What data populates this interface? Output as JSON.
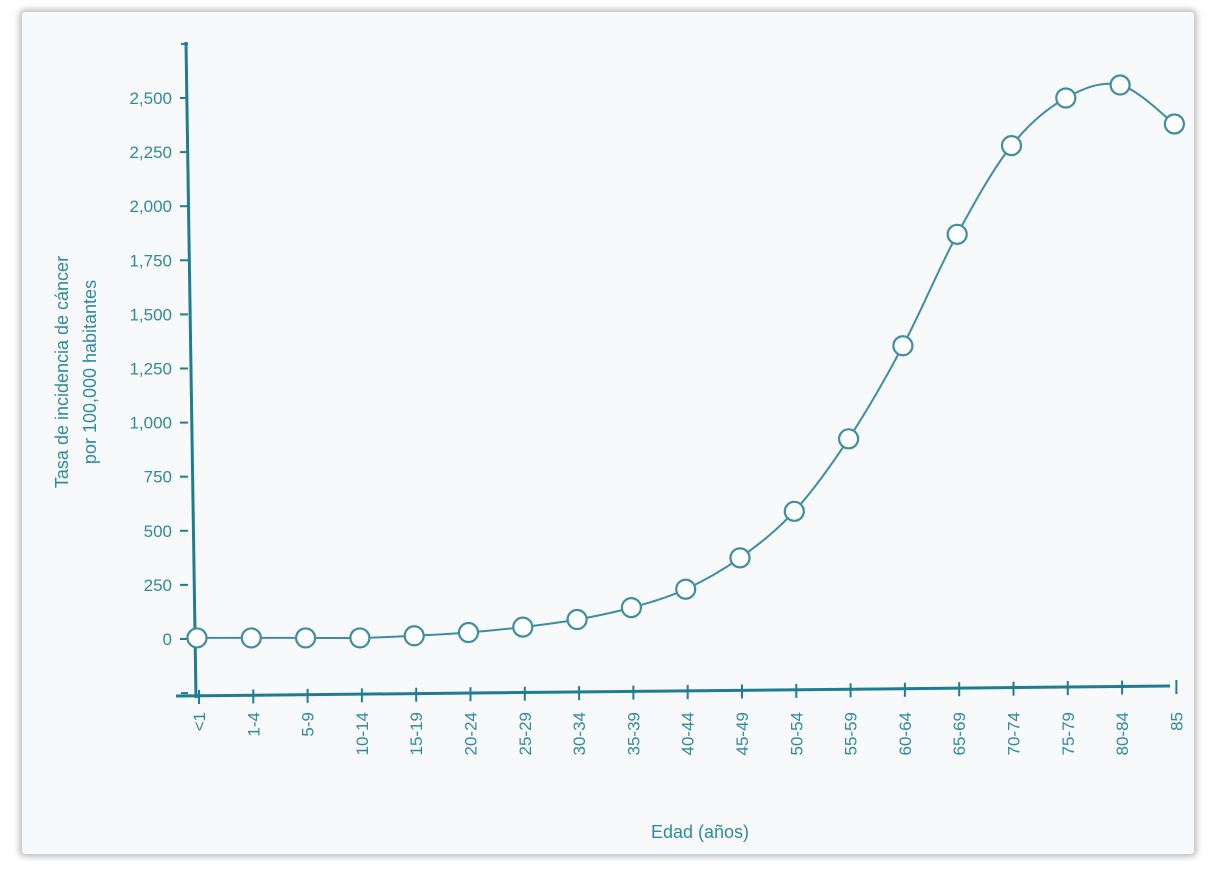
{
  "chart_data": {
    "type": "line",
    "title": "",
    "xlabel": "Edad (años)",
    "ylabel_line1": "Tasa de incidencia de cáncer",
    "ylabel_line2": "por 100,000 habitantes",
    "categories": [
      "<1",
      "1-4",
      "5-9",
      "10-14",
      "15-19",
      "20-24",
      "25-29",
      "30-34",
      "35-39",
      "40-44",
      "45-49",
      "50-54",
      "55-59",
      "60-64",
      "65-69",
      "70-74",
      "75-79",
      "80-84",
      "85"
    ],
    "values": [
      5,
      5,
      5,
      5,
      15,
      30,
      55,
      90,
      145,
      230,
      375,
      590,
      925,
      1355,
      1870,
      2280,
      2500,
      2560,
      2380
    ],
    "yticks": [
      0,
      250,
      500,
      750,
      1000,
      1250,
      1500,
      1750,
      2000,
      2250,
      2500
    ],
    "ytick_labels": [
      "0",
      "250",
      "500",
      "750",
      "1,000",
      "1,250",
      "1,500",
      "1,750",
      "2,000",
      "2,250",
      "2,500"
    ],
    "ylim": [
      -250,
      2750
    ],
    "grid": false,
    "colors": {
      "axis": "#1f7d93",
      "line": "#3d8ea3",
      "marker_fill": "#ffffff",
      "text": "#2f8aa0"
    }
  }
}
